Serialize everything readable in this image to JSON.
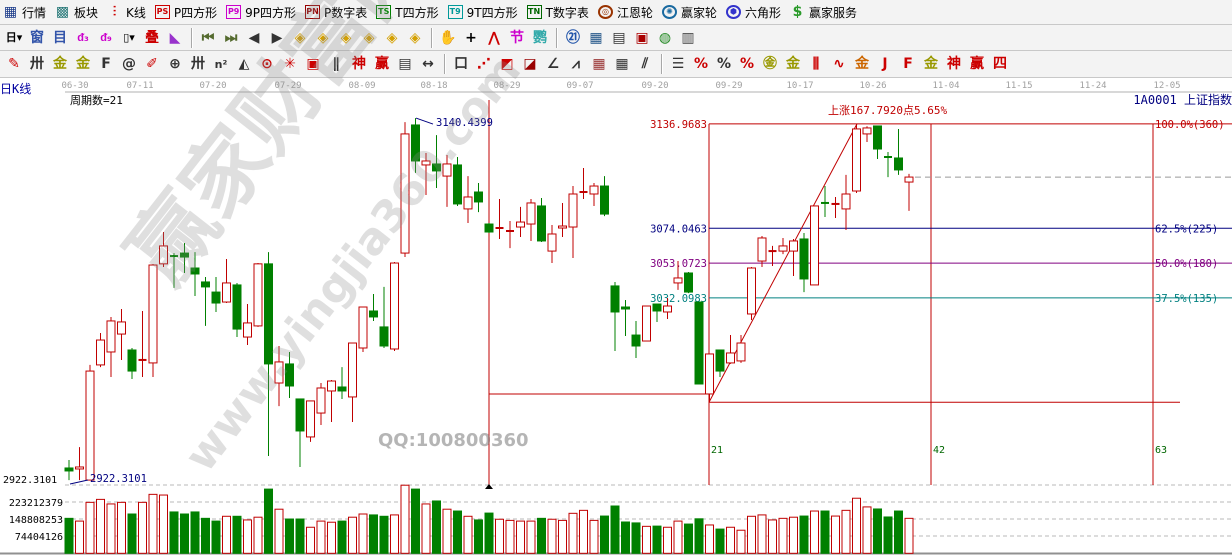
{
  "menu": [
    {
      "name": "quotes",
      "label": "行情",
      "icon": "grid-table-icon",
      "glyph": "▦",
      "color": "#1a3a8a",
      "style": "plain"
    },
    {
      "name": "sectors",
      "label": "板块",
      "icon": "sector-blocks-icon",
      "glyph": "▩",
      "color": "#2a7a7a",
      "style": "plain"
    },
    {
      "name": "kline",
      "label": "K线",
      "icon": "candlestick-icon",
      "glyph": "⫶",
      "color": "#cc0000",
      "style": "plain"
    },
    {
      "name": "p-square",
      "label": "P四方形",
      "icon": "ps-icon",
      "glyph": "PS",
      "color": "#cc0000",
      "style": "box"
    },
    {
      "name": "9p-square",
      "label": "9P四方形",
      "icon": "p9-icon",
      "glyph": "P9",
      "color": "#cc00cc",
      "style": "box"
    },
    {
      "name": "p-number-table",
      "label": "P数字表",
      "icon": "pn-icon",
      "glyph": "PN",
      "color": "#990000",
      "style": "box"
    },
    {
      "name": "t-square",
      "label": "T四方形",
      "icon": "ts-icon",
      "glyph": "TS",
      "color": "#008000",
      "style": "box"
    },
    {
      "name": "9t-square",
      "label": "9T四方形",
      "icon": "t9-icon",
      "glyph": "T9",
      "color": "#009999",
      "style": "box"
    },
    {
      "name": "t-number-table",
      "label": "T数字表",
      "icon": "tn-icon",
      "glyph": "TN",
      "color": "#006600",
      "style": "box"
    },
    {
      "name": "gann-wheel",
      "label": "江恩轮",
      "icon": "gann-wheel-icon",
      "glyph": "◎",
      "color": "#993300",
      "style": "round"
    },
    {
      "name": "winner-wheel",
      "label": "赢家轮",
      "icon": "winner-wheel-icon",
      "glyph": "✺",
      "color": "#1a6aa0",
      "style": "round"
    },
    {
      "name": "hexagon",
      "label": "六角形",
      "icon": "hexagon-icon",
      "glyph": "⬢",
      "color": "#3333cc",
      "style": "round"
    },
    {
      "name": "winner-service",
      "label": "赢家服务",
      "icon": "dollar-icon",
      "glyph": "$",
      "color": "#2a9a2a",
      "style": "plain"
    }
  ],
  "toolbar1": [
    {
      "icon": "day-period-dropdown-icon",
      "glyph": "日▾",
      "color": "#000"
    },
    {
      "icon": "window-icon",
      "glyph": "窗",
      "color": "#3355aa"
    },
    {
      "icon": "list-icon",
      "glyph": "目",
      "color": "#3355aa"
    },
    {
      "icon": "indicator-3-icon",
      "glyph": "ᵭ₃",
      "color": "#cc00cc"
    },
    {
      "icon": "indicator-9-icon",
      "glyph": "ᵭ₉",
      "color": "#cc00cc"
    },
    {
      "icon": "candle-type-dropdown-icon",
      "glyph": "▯▾",
      "color": "#000"
    },
    {
      "icon": "overlay-icon",
      "glyph": "叠",
      "color": "#cc0000"
    },
    {
      "icon": "flag-icon",
      "glyph": "◣",
      "color": "#9933cc"
    },
    {
      "sep": true
    },
    {
      "icon": "first-icon",
      "glyph": "⏮",
      "color": "#556b2f"
    },
    {
      "icon": "last-icon",
      "glyph": "⏭",
      "color": "#556b2f"
    },
    {
      "icon": "prev-icon",
      "glyph": "◀",
      "color": "#333"
    },
    {
      "icon": "next-icon",
      "glyph": "▶",
      "color": "#333"
    },
    {
      "icon": "diamond-left-icon",
      "glyph": "◈",
      "color": "#d4a000"
    },
    {
      "icon": "diamond-right-icon",
      "glyph": "◈",
      "color": "#d4a000"
    },
    {
      "icon": "diamond-expand-icon",
      "glyph": "◈",
      "color": "#d4a000"
    },
    {
      "icon": "diamond-shrink-icon",
      "glyph": "◈",
      "color": "#d4a000"
    },
    {
      "icon": "diamond-vertical-icon",
      "glyph": "◈",
      "color": "#d4a000"
    },
    {
      "icon": "diamond-all-icon",
      "glyph": "◈",
      "color": "#d4a000"
    },
    {
      "sep": true
    },
    {
      "icon": "hand-icon",
      "glyph": "✋",
      "color": "#333"
    },
    {
      "icon": "crosshair-icon",
      "glyph": "+",
      "color": "#000"
    },
    {
      "icon": "line-draw-icon",
      "glyph": "⋀",
      "color": "#cc0000"
    },
    {
      "icon": "section-icon",
      "glyph": "节",
      "color": "#cc00cc"
    },
    {
      "icon": "parrot-icon",
      "glyph": "鹦",
      "color": "#33aaaa"
    },
    {
      "sep": true
    },
    {
      "icon": "calendar-icon",
      "glyph": "㉑",
      "color": "#2255aa"
    },
    {
      "icon": "calculator-icon",
      "glyph": "▦",
      "color": "#225588"
    },
    {
      "icon": "document-icon",
      "glyph": "▤",
      "color": "#333"
    },
    {
      "icon": "save-icon",
      "glyph": "▣",
      "color": "#aa0000"
    },
    {
      "icon": "network-icon",
      "glyph": "◍",
      "color": "#228822"
    },
    {
      "icon": "computer-icon",
      "glyph": "▥",
      "color": "#444"
    }
  ],
  "toolbar2": [
    {
      "icon": "pencil-icon",
      "glyph": "✎",
      "color": "#cc0000"
    },
    {
      "icon": "parallel-lines-icon",
      "glyph": "卅",
      "color": "#333"
    },
    {
      "icon": "golden-section-icon",
      "glyph": "金",
      "color": "#999900"
    },
    {
      "icon": "golden-section-2-icon",
      "glyph": "金",
      "color": "#999900"
    },
    {
      "icon": "fibonacci-icon",
      "glyph": "F",
      "color": "#333"
    },
    {
      "icon": "spiral-icon",
      "glyph": "@",
      "color": "#333"
    },
    {
      "icon": "ruler-pen-icon",
      "glyph": "✐",
      "color": "#cc0000"
    },
    {
      "icon": "circle-icon",
      "glyph": "⊕",
      "color": "#333"
    },
    {
      "icon": "cycle-lines-icon",
      "glyph": "卅",
      "color": "#333"
    },
    {
      "icon": "n-square-icon",
      "glyph": "n²",
      "color": "#333"
    },
    {
      "icon": "triangle-icon",
      "glyph": "◭",
      "color": "#333"
    },
    {
      "icon": "target-circle-icon",
      "glyph": "⊙",
      "color": "#cc0000"
    },
    {
      "icon": "web-icon",
      "glyph": "✳",
      "color": "#cc0000"
    },
    {
      "icon": "frame-icon",
      "glyph": "▣",
      "color": "#cc0000"
    },
    {
      "icon": "channel-icon",
      "glyph": "∥",
      "color": "#333"
    },
    {
      "icon": "god-icon",
      "glyph": "神",
      "color": "#cc0000"
    },
    {
      "icon": "winner-icon",
      "glyph": "赢",
      "color": "#cc0000"
    },
    {
      "icon": "scale-icon",
      "glyph": "▤",
      "color": "#333"
    },
    {
      "icon": "width-icon",
      "glyph": "↔",
      "color": "#333"
    },
    {
      "sep": true
    },
    {
      "icon": "box-icon",
      "glyph": "口",
      "color": "#333"
    },
    {
      "icon": "fan-icon",
      "glyph": "⋰",
      "color": "#cc0000"
    },
    {
      "icon": "fan-box-icon",
      "glyph": "◩",
      "color": "#cc0000"
    },
    {
      "icon": "fan-box-2-icon",
      "glyph": "◪",
      "color": "#990000"
    },
    {
      "icon": "angle-icon",
      "glyph": "∠",
      "color": "#333"
    },
    {
      "icon": "zigzag-icon",
      "glyph": "⩘",
      "color": "#333"
    },
    {
      "icon": "grid-icon",
      "glyph": "▦",
      "color": "#993333"
    },
    {
      "icon": "grid-2-icon",
      "glyph": "▦",
      "color": "#333"
    },
    {
      "icon": "slash-lines-icon",
      "glyph": "⫽",
      "color": "#333"
    },
    {
      "sep": true
    },
    {
      "icon": "steps-icon",
      "glyph": "☰",
      "color": "#333"
    },
    {
      "icon": "percent-slope-icon",
      "glyph": "%",
      "color": "#cc0000"
    },
    {
      "icon": "percent-icon",
      "glyph": "%",
      "color": "#333"
    },
    {
      "icon": "percent-lines-icon",
      "glyph": "%",
      "color": "#cc0000"
    },
    {
      "icon": "gold-circle-icon",
      "glyph": "㊎",
      "color": "#999900"
    },
    {
      "icon": "gold-lines-icon",
      "glyph": "金",
      "color": "#999900"
    },
    {
      "icon": "ruler-icon",
      "glyph": "⫼",
      "color": "#cc0000"
    },
    {
      "icon": "wave-icon",
      "glyph": "∿",
      "color": "#cc0000"
    },
    {
      "icon": "gold-icon",
      "glyph": "金",
      "color": "#cc6600"
    },
    {
      "icon": "j-angle-icon",
      "glyph": "J",
      "color": "#cc0000"
    },
    {
      "icon": "f-angle-icon",
      "glyph": "F",
      "color": "#cc0000"
    },
    {
      "icon": "gold-angle-icon",
      "glyph": "金",
      "color": "#999900"
    },
    {
      "icon": "god-angle-icon",
      "glyph": "神",
      "color": "#cc0000"
    },
    {
      "icon": "winner-angle-icon",
      "glyph": "赢",
      "color": "#cc0000"
    },
    {
      "icon": "four-icon",
      "glyph": "四",
      "color": "#cc0000"
    }
  ],
  "chart": {
    "period_label": "日K线",
    "cycle_count_label": "周期数=21",
    "symbol": "1A0001",
    "symbol_name": "上证指数",
    "dates": [
      "06-30",
      "07-11",
      "07-20",
      "07-29",
      "08-09",
      "08-18",
      "08-29",
      "09-07",
      "09-20",
      "09-29",
      "10-17",
      "10-26",
      "11-04",
      "11-15",
      "11-24",
      "12-05"
    ],
    "price_axis_label": "2922.3101",
    "volume_axis_labels": [
      "223212379",
      "148808253",
      "74404126"
    ],
    "high_marker": "3140.4399",
    "low_marker": "2922.3101",
    "rise_text": "上涨167.7920点5.65%",
    "cycle_labels": [
      "21",
      "42",
      "63"
    ],
    "fib_levels": [
      {
        "price": 3136.9683,
        "label": "3136.9683",
        "right": "100.0%(360)",
        "color": "#c00000"
      },
      {
        "price": 3074.0463,
        "label": "3074.0463",
        "right": "62.5%(225)",
        "color": "#000080"
      },
      {
        "price": 3053.0723,
        "label": "3053.0723",
        "right": "50.0%(180)",
        "color": "#800080"
      },
      {
        "price": 3032.0983,
        "label": "3032.0983",
        "right": "37.5%(135)",
        "color": "#008080"
      }
    ],
    "fib_low": 2969.18,
    "colors": {
      "up": "#c00000",
      "down": "#008000",
      "axis_text": "#000080",
      "line": "#c00000"
    }
  },
  "chart_data": {
    "type": "candlestick",
    "ohlc": [
      [
        2929.6,
        2934.4,
        2922.3,
        2927.8
      ],
      [
        2929.0,
        2942.2,
        2922.3,
        2930.2
      ],
      [
        2922.3,
        2991.7,
        2922.3,
        2988.0
      ],
      [
        2991.7,
        3010.9,
        2990.4,
        3006.7
      ],
      [
        2999.5,
        3020.6,
        2984.4,
        3018.2
      ],
      [
        3010.3,
        3025.4,
        2994.7,
        3017.6
      ],
      [
        3000.7,
        3001.9,
        2983.2,
        2988.0
      ],
      [
        2994.1,
        3024.2,
        2984.4,
        2994.7
      ],
      [
        2992.9,
        3052.5,
        2984.4,
        3051.9
      ],
      [
        3052.6,
        3071.8,
        3050.7,
        3063.4
      ],
      [
        3057.3,
        3059.1,
        3038.1,
        3056.7
      ],
      [
        3059.1,
        3065.2,
        3047.1,
        3056.7
      ],
      [
        3050.1,
        3059.7,
        3033.2,
        3046.5
      ],
      [
        3041.7,
        3044.7,
        3015.2,
        3038.7
      ],
      [
        3035.6,
        3044.7,
        3023.6,
        3029.0
      ],
      [
        3029.6,
        3055.5,
        3029.0,
        3041.1
      ],
      [
        3039.9,
        3041.1,
        3008.5,
        3013.3
      ],
      [
        3008.5,
        3028.4,
        3003.7,
        3017.0
      ],
      [
        3015.2,
        3053.1,
        3014.6,
        3052.6
      ],
      [
        3052.6,
        3059.7,
        2936.8,
        2992.3
      ],
      [
        2980.8,
        3003.1,
        2966.9,
        2993.5
      ],
      [
        2992.3,
        2999.5,
        2971.8,
        2979.0
      ],
      [
        2971.2,
        2971.2,
        2930.2,
        2951.9
      ],
      [
        2948.3,
        2970.0,
        2945.3,
        2970.0
      ],
      [
        2962.7,
        2980.8,
        2955.5,
        2977.8
      ],
      [
        2976.0,
        2982.6,
        2957.3,
        2982.0
      ],
      [
        2978.4,
        2990.4,
        2971.2,
        2976.0
      ],
      [
        2972.4,
        3004.9,
        2957.3,
        3004.9
      ],
      [
        3001.9,
        3026.6,
        2999.5,
        3026.6
      ],
      [
        3024.2,
        3034.4,
        3018.2,
        3020.6
      ],
      [
        3014.6,
        3038.7,
        3001.9,
        3003.1
      ],
      [
        3001.3,
        3053.7,
        3000.1,
        3053.1
      ],
      [
        3059.1,
        3138.0,
        3056.7,
        3130.9
      ],
      [
        3136.3,
        3140.44,
        3107.4,
        3114.6
      ],
      [
        3112.2,
        3119.4,
        3094.1,
        3114.6
      ],
      [
        3112.8,
        3130.2,
        3098.3,
        3108.6
      ],
      [
        3105.5,
        3118.2,
        3086.9,
        3112.8
      ],
      [
        3112.2,
        3117.0,
        3087.5,
        3088.7
      ],
      [
        3085.7,
        3105.5,
        3077.2,
        3092.9
      ],
      [
        3095.9,
        3101.3,
        3083.8,
        3089.9
      ],
      [
        3076.6,
        3077.2,
        3071.2,
        3071.8
      ],
      [
        3073.6,
        3091.7,
        3067.6,
        3074.2
      ],
      [
        3072.4,
        3078.4,
        3062.1,
        3072.4
      ],
      [
        3074.8,
        3086.9,
        3068.8,
        3077.8
      ],
      [
        3076.6,
        3091.7,
        3066.4,
        3089.3
      ],
      [
        3087.5,
        3092.3,
        3065.8,
        3066.4
      ],
      [
        3060.3,
        3076.0,
        3053.1,
        3070.6
      ],
      [
        3074.2,
        3089.3,
        3068.8,
        3075.4
      ],
      [
        3074.8,
        3099.5,
        3056.1,
        3094.7
      ],
      [
        3095.9,
        3110.4,
        3091.7,
        3095.9
      ],
      [
        3094.7,
        3101.3,
        3087.5,
        3099.5
      ],
      [
        3099.5,
        3105.5,
        3081.4,
        3082.6
      ],
      [
        3039.3,
        3041.7,
        3000.1,
        3023.6
      ],
      [
        3026.6,
        3030.8,
        3009.1,
        3025.4
      ],
      [
        3009.7,
        3018.2,
        2995.9,
        3003.1
      ],
      [
        3006.1,
        3027.2,
        3006.1,
        3027.2
      ],
      [
        3028.4,
        3028.4,
        3017.6,
        3024.2
      ],
      [
        3023.6,
        3032.0,
        3019.4,
        3027.2
      ],
      [
        3041.1,
        3054.3,
        3036.9,
        3044.1
      ],
      [
        3047.1,
        3047.7,
        3035.0,
        3035.6
      ],
      [
        3029.6,
        3029.6,
        2980.2,
        2980.2
      ],
      [
        2974.2,
        2998.3,
        2969.2,
        2998.3
      ],
      [
        3000.7,
        3000.7,
        2984.4,
        2988.0
      ],
      [
        2992.9,
        3009.7,
        2992.3,
        2998.9
      ],
      [
        2994.1,
        3009.7,
        2992.9,
        3004.9
      ],
      [
        3022.4,
        3050.7,
        3018.8,
        3050.1
      ],
      [
        3054.3,
        3069.4,
        3050.7,
        3068.2
      ],
      [
        3060.3,
        3063.4,
        3051.3,
        3060.3
      ],
      [
        3060.3,
        3068.2,
        3058.5,
        3063.4
      ],
      [
        3060.3,
        3067.6,
        3045.3,
        3066.4
      ],
      [
        3067.6,
        3071.2,
        3035.6,
        3043.5
      ],
      [
        3039.9,
        3087.5,
        3039.9,
        3087.5
      ],
      [
        3089.3,
        3099.5,
        3080.8,
        3088.7
      ],
      [
        3088.7,
        3092.9,
        3080.2,
        3088.7
      ],
      [
        3085.7,
        3106.2,
        3073.0,
        3094.7
      ],
      [
        3096.5,
        3136.97,
        3095.3,
        3133.9
      ],
      [
        3130.9,
        3135.5,
        3126.0,
        3134.5
      ],
      [
        3135.7,
        3135.7,
        3115.8,
        3121.8
      ],
      [
        3117.0,
        3120.0,
        3104.9,
        3116.8
      ],
      [
        3116.4,
        3133.9,
        3106.2,
        3109.2
      ],
      [
        3101.9,
        3106.8,
        3084.5,
        3104.9
      ]
    ],
    "volume": [
      153000000.0,
      141000000.0,
      223000000.0,
      236000000.0,
      216000000.0,
      223000000.0,
      172000000.0,
      223000000.0,
      258000000.0,
      255000000.0,
      181000000.0,
      172000000.0,
      181000000.0,
      153000000.0,
      141000000.0,
      162000000.0,
      162000000.0,
      146000000.0,
      158000000.0,
      281000000.0,
      193000000.0,
      150000000.0,
      150000000.0,
      114000000.0,
      141000000.0,
      136000000.0,
      141000000.0,
      158000000.0,
      172000000.0,
      168000000.0,
      162000000.0,
      168000000.0,
      298000000.0,
      281000000.0,
      216000000.0,
      229000000.0,
      193000000.0,
      185000000.0,
      162000000.0,
      146000000.0,
      176000000.0,
      149000000.0,
      144000000.0,
      141000000.0,
      141000000.0,
      153000000.0,
      149000000.0,
      144000000.0,
      175000000.0,
      188000000.0,
      144000000.0,
      163000000.0,
      207000000.0,
      137000000.0,
      133000000.0,
      118000000.0,
      119000000.0,
      114000000.0,
      141000000.0,
      128000000.0,
      151000000.0,
      124000000.0,
      106000000.0,
      114000000.0,
      101000000.0,
      162000000.0,
      168000000.0,
      146000000.0,
      153000000.0,
      158000000.0,
      163000000.0,
      185000000.0,
      185000000.0,
      163000000.0,
      188000000.0,
      241000000.0,
      203000000.0,
      194000000.0,
      159000000.0,
      185000000.0,
      153000000.0
    ],
    "price_range": [
      2922.3101,
      3140.4399
    ],
    "volume_gridlines": [
      74404126,
      148808253,
      223212379
    ],
    "grid": "dashed-horizontal"
  },
  "watermark": {
    "logo": "赢家财富网",
    "site": "www.yingjia360.com",
    "qq": "QQ:100800360"
  }
}
